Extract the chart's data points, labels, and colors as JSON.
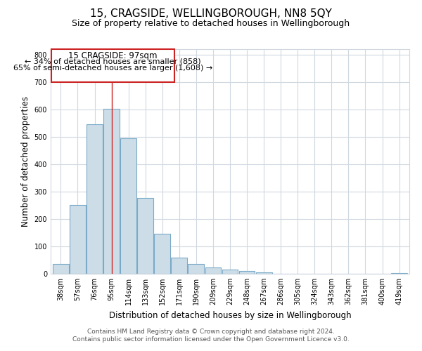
{
  "title": "15, CRAGSIDE, WELLINGBOROUGH, NN8 5QY",
  "subtitle": "Size of property relative to detached houses in Wellingborough",
  "xlabel": "Distribution of detached houses by size in Wellingborough",
  "ylabel": "Number of detached properties",
  "categories": [
    "38sqm",
    "57sqm",
    "76sqm",
    "95sqm",
    "114sqm",
    "133sqm",
    "152sqm",
    "171sqm",
    "190sqm",
    "209sqm",
    "229sqm",
    "248sqm",
    "267sqm",
    "286sqm",
    "305sqm",
    "324sqm",
    "343sqm",
    "362sqm",
    "381sqm",
    "400sqm",
    "419sqm"
  ],
  "values": [
    35,
    250,
    547,
    601,
    494,
    278,
    145,
    60,
    35,
    22,
    15,
    10,
    5,
    1,
    1,
    1,
    1,
    1,
    1,
    1,
    2
  ],
  "bar_color": "#ccdde8",
  "bar_edge_color": "#7aaac8",
  "ylim": [
    0,
    820
  ],
  "yticks": [
    0,
    100,
    200,
    300,
    400,
    500,
    600,
    700,
    800
  ],
  "annotation_title": "15 CRAGSIDE: 97sqm",
  "annotation_line1": "← 34% of detached houses are smaller (858)",
  "annotation_line2": "65% of semi-detached houses are larger (1,608) →",
  "property_bar_index": 3,
  "footer_line1": "Contains HM Land Registry data © Crown copyright and database right 2024.",
  "footer_line2": "Contains public sector information licensed under the Open Government Licence v3.0.",
  "bg_color": "#ffffff",
  "grid_color": "#d0d8e0",
  "title_fontsize": 11,
  "subtitle_fontsize": 9,
  "axis_label_fontsize": 8.5,
  "tick_fontsize": 7,
  "footer_fontsize": 6.5,
  "annotation_fontsize_title": 8.5,
  "annotation_fontsize_body": 8
}
